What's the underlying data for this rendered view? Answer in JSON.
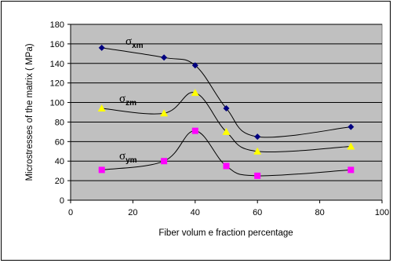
{
  "chart_data": {
    "type": "line",
    "title": "",
    "xlabel": "Fiber volum e fraction percentage",
    "ylabel": "Microstresses of the matrix ( MPa)",
    "xlim": [
      0,
      100
    ],
    "ylim": [
      0,
      180
    ],
    "xticks": [
      "0",
      "20",
      "40",
      "60",
      "80",
      "100"
    ],
    "yticks": [
      "0",
      "20",
      "40",
      "60",
      "80",
      "100",
      "120",
      "140",
      "160",
      "180"
    ],
    "grid": "horizontal",
    "plot_background": "#c0c0c0",
    "x": [
      10,
      30,
      40,
      50,
      60,
      90
    ],
    "series": [
      {
        "name": "σxm",
        "symbol": "σ",
        "subscript": "xm",
        "color": "#000080",
        "marker": "diamond",
        "values": [
          156,
          146,
          138,
          94,
          65,
          75
        ]
      },
      {
        "name": "σzm",
        "symbol": "σ",
        "subscript": "zm",
        "color": "#ffff00",
        "marker": "triangle",
        "values": [
          94,
          89,
          110,
          70,
          50,
          55
        ]
      },
      {
        "name": "σym",
        "symbol": "σ",
        "subscript": "ym",
        "color": "#ff00ff",
        "marker": "square",
        "values": [
          31,
          40,
          71,
          35,
          25,
          31
        ]
      }
    ]
  }
}
